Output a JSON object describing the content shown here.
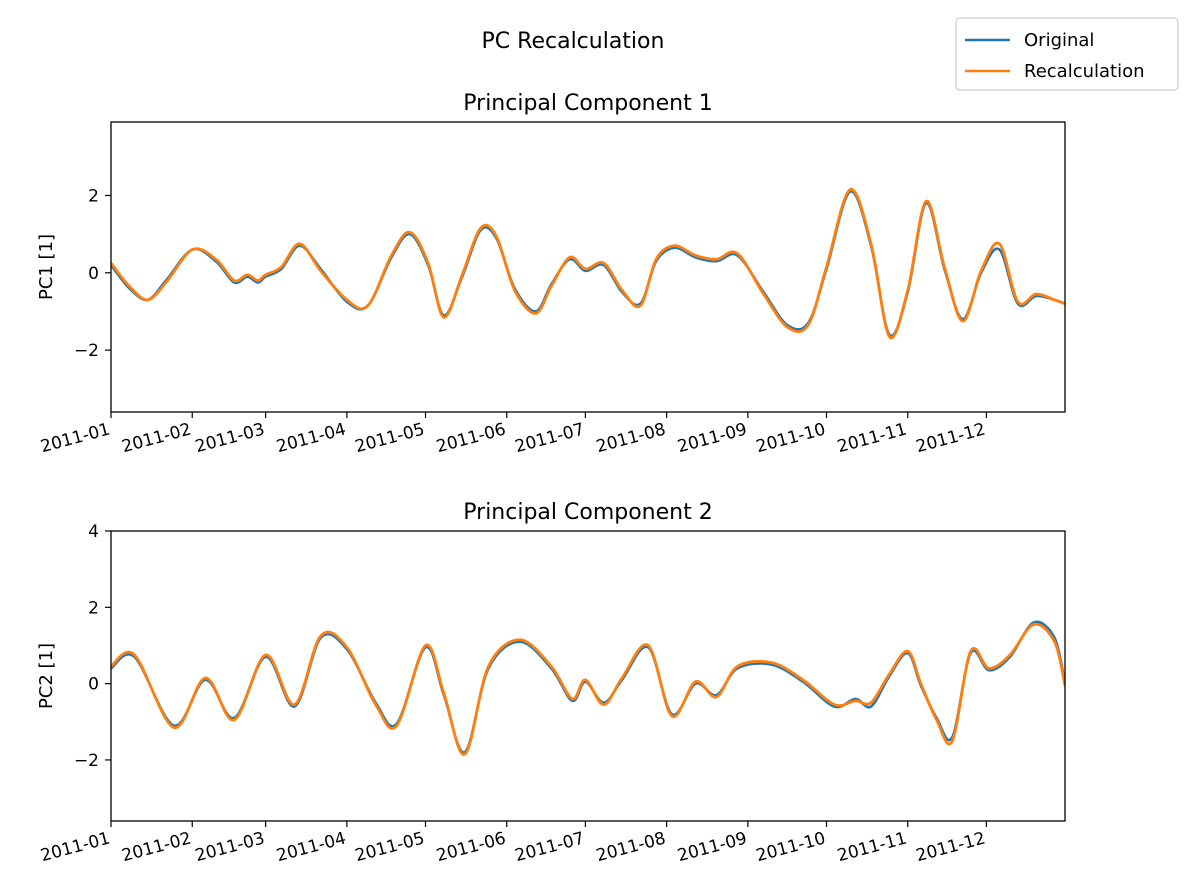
{
  "figure": {
    "suptitle": "PC Recalculation",
    "legend": {
      "placement": "top-right",
      "entries": [
        {
          "label": "Original",
          "color": "#1f77b4"
        },
        {
          "label": "Recalculation",
          "color": "#ff7f0e"
        }
      ]
    }
  },
  "chart_data": [
    {
      "type": "line",
      "title": "Principal Component 1",
      "xlabel": "",
      "ylabel": "PC1 [1]",
      "x_axis": "date",
      "xlim": [
        "2011-01-01",
        "2011-12-31"
      ],
      "ylim": [
        -3.6,
        3.9
      ],
      "yticks": [
        -2,
        0,
        2
      ],
      "yticklabels": [
        "−2",
        "0",
        "2"
      ],
      "xticklabels": [
        "2011-01",
        "2011-02",
        "2011-03",
        "2011-04",
        "2011-05",
        "2011-06",
        "2011-07",
        "2011-08",
        "2011-09",
        "2011-10",
        "2011-11",
        "2011-12"
      ],
      "grid": false,
      "x": [
        "2011-01-01",
        "2011-01-08",
        "2011-01-15",
        "2011-01-22",
        "2011-02-01",
        "2011-02-10",
        "2011-02-17",
        "2011-02-22",
        "2011-02-26",
        "2011-03-01",
        "2011-03-07",
        "2011-03-14",
        "2011-03-22",
        "2011-04-01",
        "2011-04-09",
        "2011-04-18",
        "2011-04-25",
        "2011-05-02",
        "2011-05-08",
        "2011-05-15",
        "2011-05-22",
        "2011-05-28",
        "2011-06-04",
        "2011-06-12",
        "2011-06-18",
        "2011-06-25",
        "2011-07-01",
        "2011-07-08",
        "2011-07-15",
        "2011-07-22",
        "2011-07-28",
        "2011-08-04",
        "2011-08-12",
        "2011-08-20",
        "2011-08-28",
        "2011-09-07",
        "2011-09-16",
        "2011-09-24",
        "2011-10-01",
        "2011-10-10",
        "2011-10-18",
        "2011-10-25",
        "2011-11-01",
        "2011-11-08",
        "2011-11-15",
        "2011-11-22",
        "2011-11-29",
        "2011-12-06",
        "2011-12-13",
        "2011-12-20",
        "2011-12-27",
        "2011-12-31"
      ],
      "series": [
        {
          "name": "Original",
          "color": "#1f77b4",
          "values": [
            0.2,
            -0.4,
            -0.7,
            -0.2,
            0.6,
            0.3,
            -0.25,
            -0.1,
            -0.25,
            -0.1,
            0.1,
            0.7,
            0.1,
            -0.75,
            -0.85,
            0.4,
            1.0,
            0.2,
            -1.1,
            -0.1,
            1.1,
            0.9,
            -0.4,
            -1.0,
            -0.3,
            0.35,
            0.05,
            0.2,
            -0.5,
            -0.8,
            0.3,
            0.65,
            0.4,
            0.3,
            0.45,
            -0.5,
            -1.35,
            -1.3,
            0.1,
            2.1,
            0.7,
            -1.6,
            -0.5,
            1.8,
            0.1,
            -1.2,
            0.0,
            0.6,
            -0.8,
            -0.6,
            -0.7,
            -0.8
          ]
        },
        {
          "name": "Recalculation",
          "color": "#ff7f0e",
          "values": [
            0.25,
            -0.35,
            -0.7,
            -0.25,
            0.6,
            0.35,
            -0.2,
            -0.05,
            -0.2,
            -0.05,
            0.15,
            0.75,
            0.05,
            -0.7,
            -0.85,
            0.45,
            1.05,
            0.25,
            -1.15,
            -0.05,
            1.15,
            0.95,
            -0.45,
            -1.05,
            -0.35,
            0.4,
            0.1,
            0.25,
            -0.45,
            -0.85,
            0.35,
            0.7,
            0.45,
            0.35,
            0.5,
            -0.55,
            -1.4,
            -1.35,
            0.15,
            2.15,
            0.75,
            -1.65,
            -0.45,
            1.85,
            0.15,
            -1.25,
            0.05,
            0.75,
            -0.75,
            -0.55,
            -0.7,
            -0.8
          ]
        }
      ]
    },
    {
      "type": "line",
      "title": "Principal Component 2",
      "xlabel": "",
      "ylabel": "PC2 [1]",
      "x_axis": "date",
      "xlim": [
        "2011-01-01",
        "2011-12-31"
      ],
      "ylim": [
        -3.6,
        4.0
      ],
      "yticks": [
        -2,
        0,
        2,
        4
      ],
      "yticklabels": [
        "−2",
        "0",
        "2",
        "4"
      ],
      "xticklabels": [
        "2011-01",
        "2011-02",
        "2011-03",
        "2011-04",
        "2011-05",
        "2011-06",
        "2011-07",
        "2011-08",
        "2011-09",
        "2011-10",
        "2011-11",
        "2011-12"
      ],
      "grid": false,
      "x": [
        "2011-01-01",
        "2011-01-10",
        "2011-01-25",
        "2011-02-06",
        "2011-02-17",
        "2011-03-01",
        "2011-03-12",
        "2011-03-22",
        "2011-04-01",
        "2011-04-12",
        "2011-04-20",
        "2011-05-01",
        "2011-05-08",
        "2011-05-16",
        "2011-05-25",
        "2011-06-06",
        "2011-06-18",
        "2011-06-26",
        "2011-07-01",
        "2011-07-08",
        "2011-07-15",
        "2011-07-25",
        "2011-08-03",
        "2011-08-12",
        "2011-08-20",
        "2011-08-28",
        "2011-09-10",
        "2011-09-22",
        "2011-10-04",
        "2011-10-12",
        "2011-10-18",
        "2011-10-25",
        "2011-11-01",
        "2011-11-06",
        "2011-11-12",
        "2011-11-18",
        "2011-11-25",
        "2011-12-02",
        "2011-12-10",
        "2011-12-19",
        "2011-12-27",
        "2011-12-31"
      ],
      "series": [
        {
          "name": "Original",
          "color": "#1f77b4",
          "values": [
            0.4,
            0.7,
            -1.1,
            0.1,
            -0.9,
            0.7,
            -0.6,
            1.2,
            0.9,
            -0.5,
            -1.05,
            0.95,
            -0.3,
            -1.8,
            0.4,
            1.1,
            0.4,
            -0.45,
            0.05,
            -0.5,
            0.1,
            0.95,
            -0.8,
            0.0,
            -0.3,
            0.4,
            0.5,
            0.05,
            -0.6,
            -0.4,
            -0.6,
            0.2,
            0.8,
            -0.05,
            -0.9,
            -1.4,
            0.8,
            0.35,
            0.7,
            1.6,
            1.2,
            0.0
          ]
        },
        {
          "name": "Recalculation",
          "color": "#ff7f0e",
          "values": [
            0.45,
            0.75,
            -1.15,
            0.15,
            -0.95,
            0.75,
            -0.55,
            1.25,
            0.95,
            -0.55,
            -1.1,
            1.0,
            -0.25,
            -1.85,
            0.45,
            1.15,
            0.45,
            -0.4,
            0.1,
            -0.55,
            0.15,
            1.0,
            -0.85,
            0.05,
            -0.35,
            0.45,
            0.55,
            0.1,
            -0.55,
            -0.45,
            -0.5,
            0.25,
            0.85,
            0.0,
            -0.95,
            -1.5,
            0.85,
            0.4,
            0.75,
            1.55,
            1.1,
            -0.05
          ]
        }
      ]
    }
  ]
}
